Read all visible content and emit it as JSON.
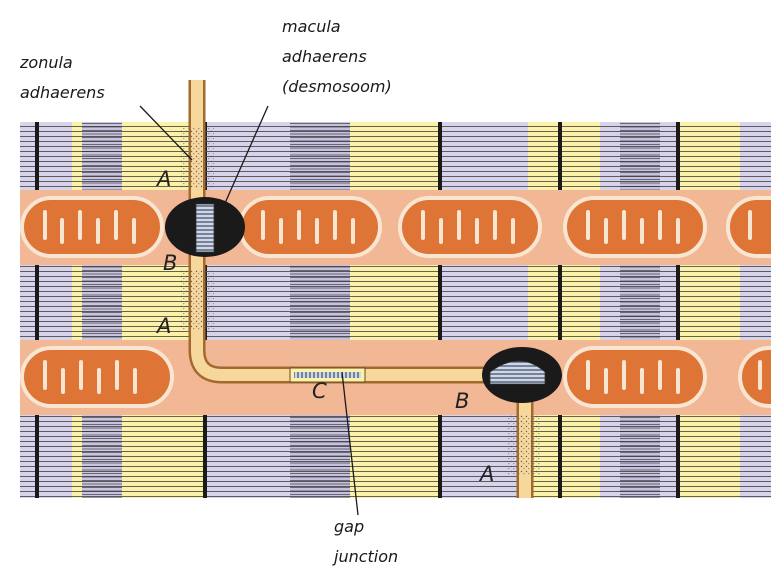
{
  "labels": {
    "zonula": [
      "zonula",
      "adhaerens"
    ],
    "macula": [
      "macula",
      "adhaerens",
      "(desmosoom)"
    ],
    "gap": [
      "gap",
      "junction"
    ]
  },
  "letters": {
    "a": "A",
    "b": "B",
    "c": "C"
  },
  "colors": {
    "sarcomere_band_light": "#fbf1a8",
    "sarcomere_band_lilac": "#d7d3ea",
    "mito_row": "#f2b795",
    "mitochondrion": "#de7436",
    "intercalated_disc": "#f6d79c",
    "desmosome": "#1a1a1a"
  }
}
